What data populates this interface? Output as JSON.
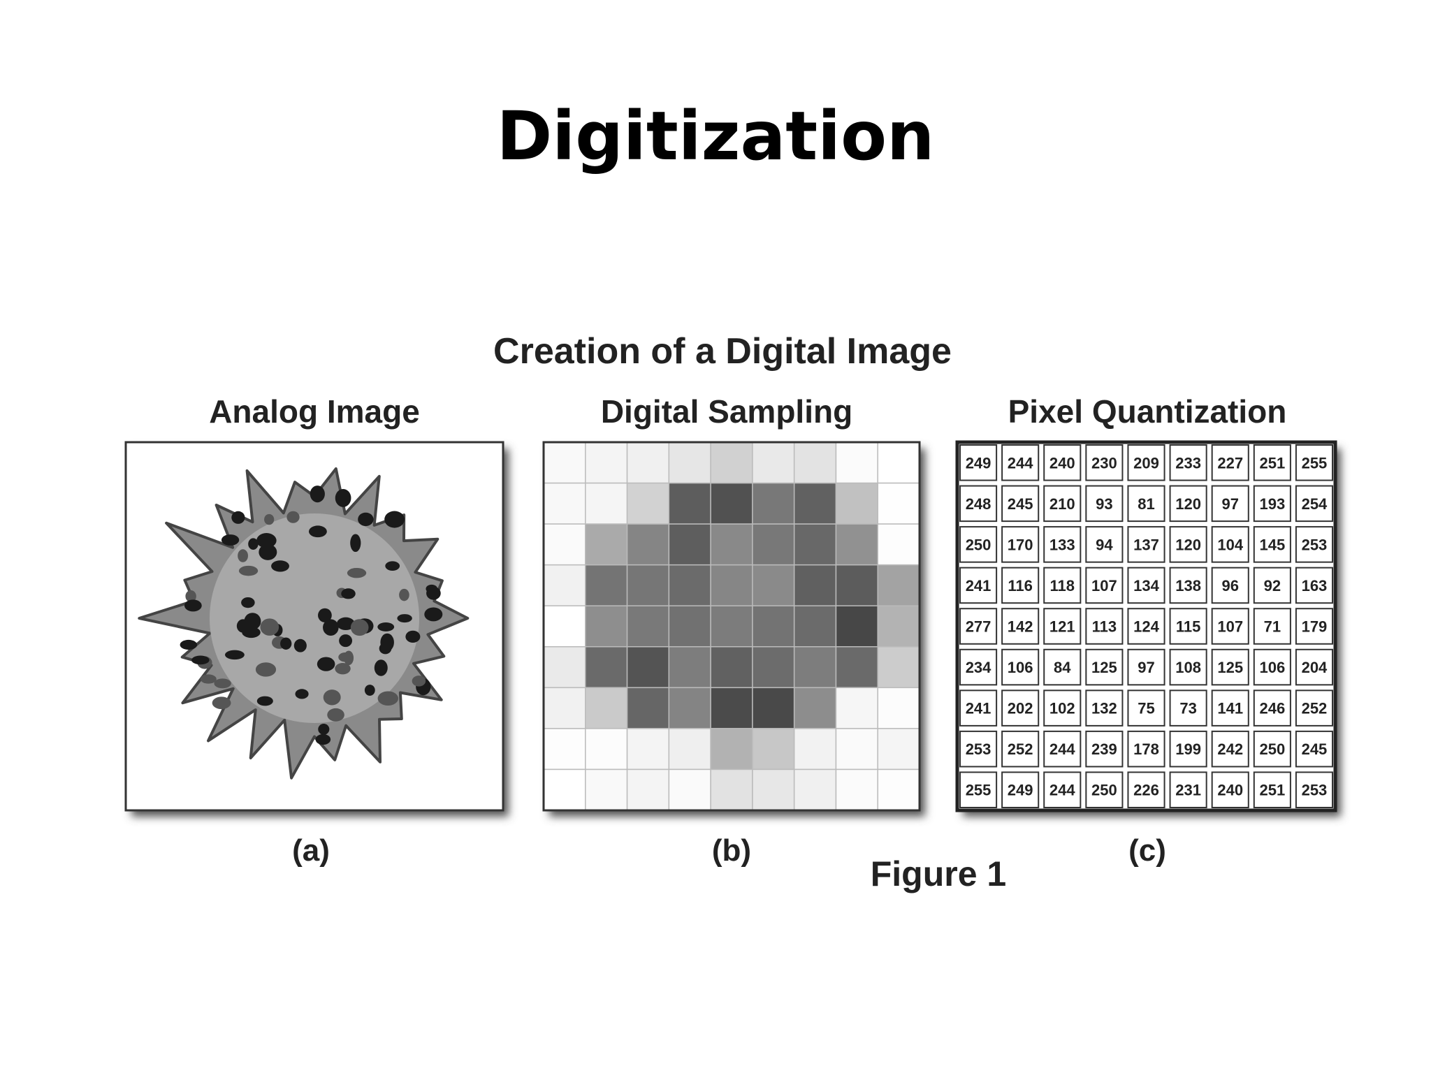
{
  "title": "Digitization",
  "figure": {
    "title": "Creation of a Digital Image",
    "panels": [
      {
        "heading": "Analog Image",
        "caption": "(a)"
      },
      {
        "heading": "Digital Sampling",
        "caption": "(b)"
      },
      {
        "heading": "Pixel Quantization",
        "caption": "(c)"
      }
    ],
    "label": "Figure 1",
    "pixel_values": [
      [
        249,
        244,
        240,
        230,
        209,
        233,
        227,
        251,
        255
      ],
      [
        248,
        245,
        210,
        93,
        81,
        120,
        97,
        193,
        254
      ],
      [
        250,
        170,
        133,
        94,
        137,
        120,
        104,
        145,
        253
      ],
      [
        241,
        116,
        118,
        107,
        134,
        138,
        96,
        92,
        163
      ],
      [
        277,
        142,
        121,
        113,
        124,
        115,
        107,
        71,
        179
      ],
      [
        234,
        106,
        84,
        125,
        97,
        108,
        125,
        106,
        204
      ],
      [
        241,
        202,
        102,
        132,
        75,
        73,
        141,
        246,
        252
      ],
      [
        253,
        252,
        244,
        239,
        178,
        199,
        242,
        250,
        245
      ],
      [
        255,
        249,
        244,
        250,
        226,
        231,
        240,
        251,
        253
      ]
    ]
  }
}
